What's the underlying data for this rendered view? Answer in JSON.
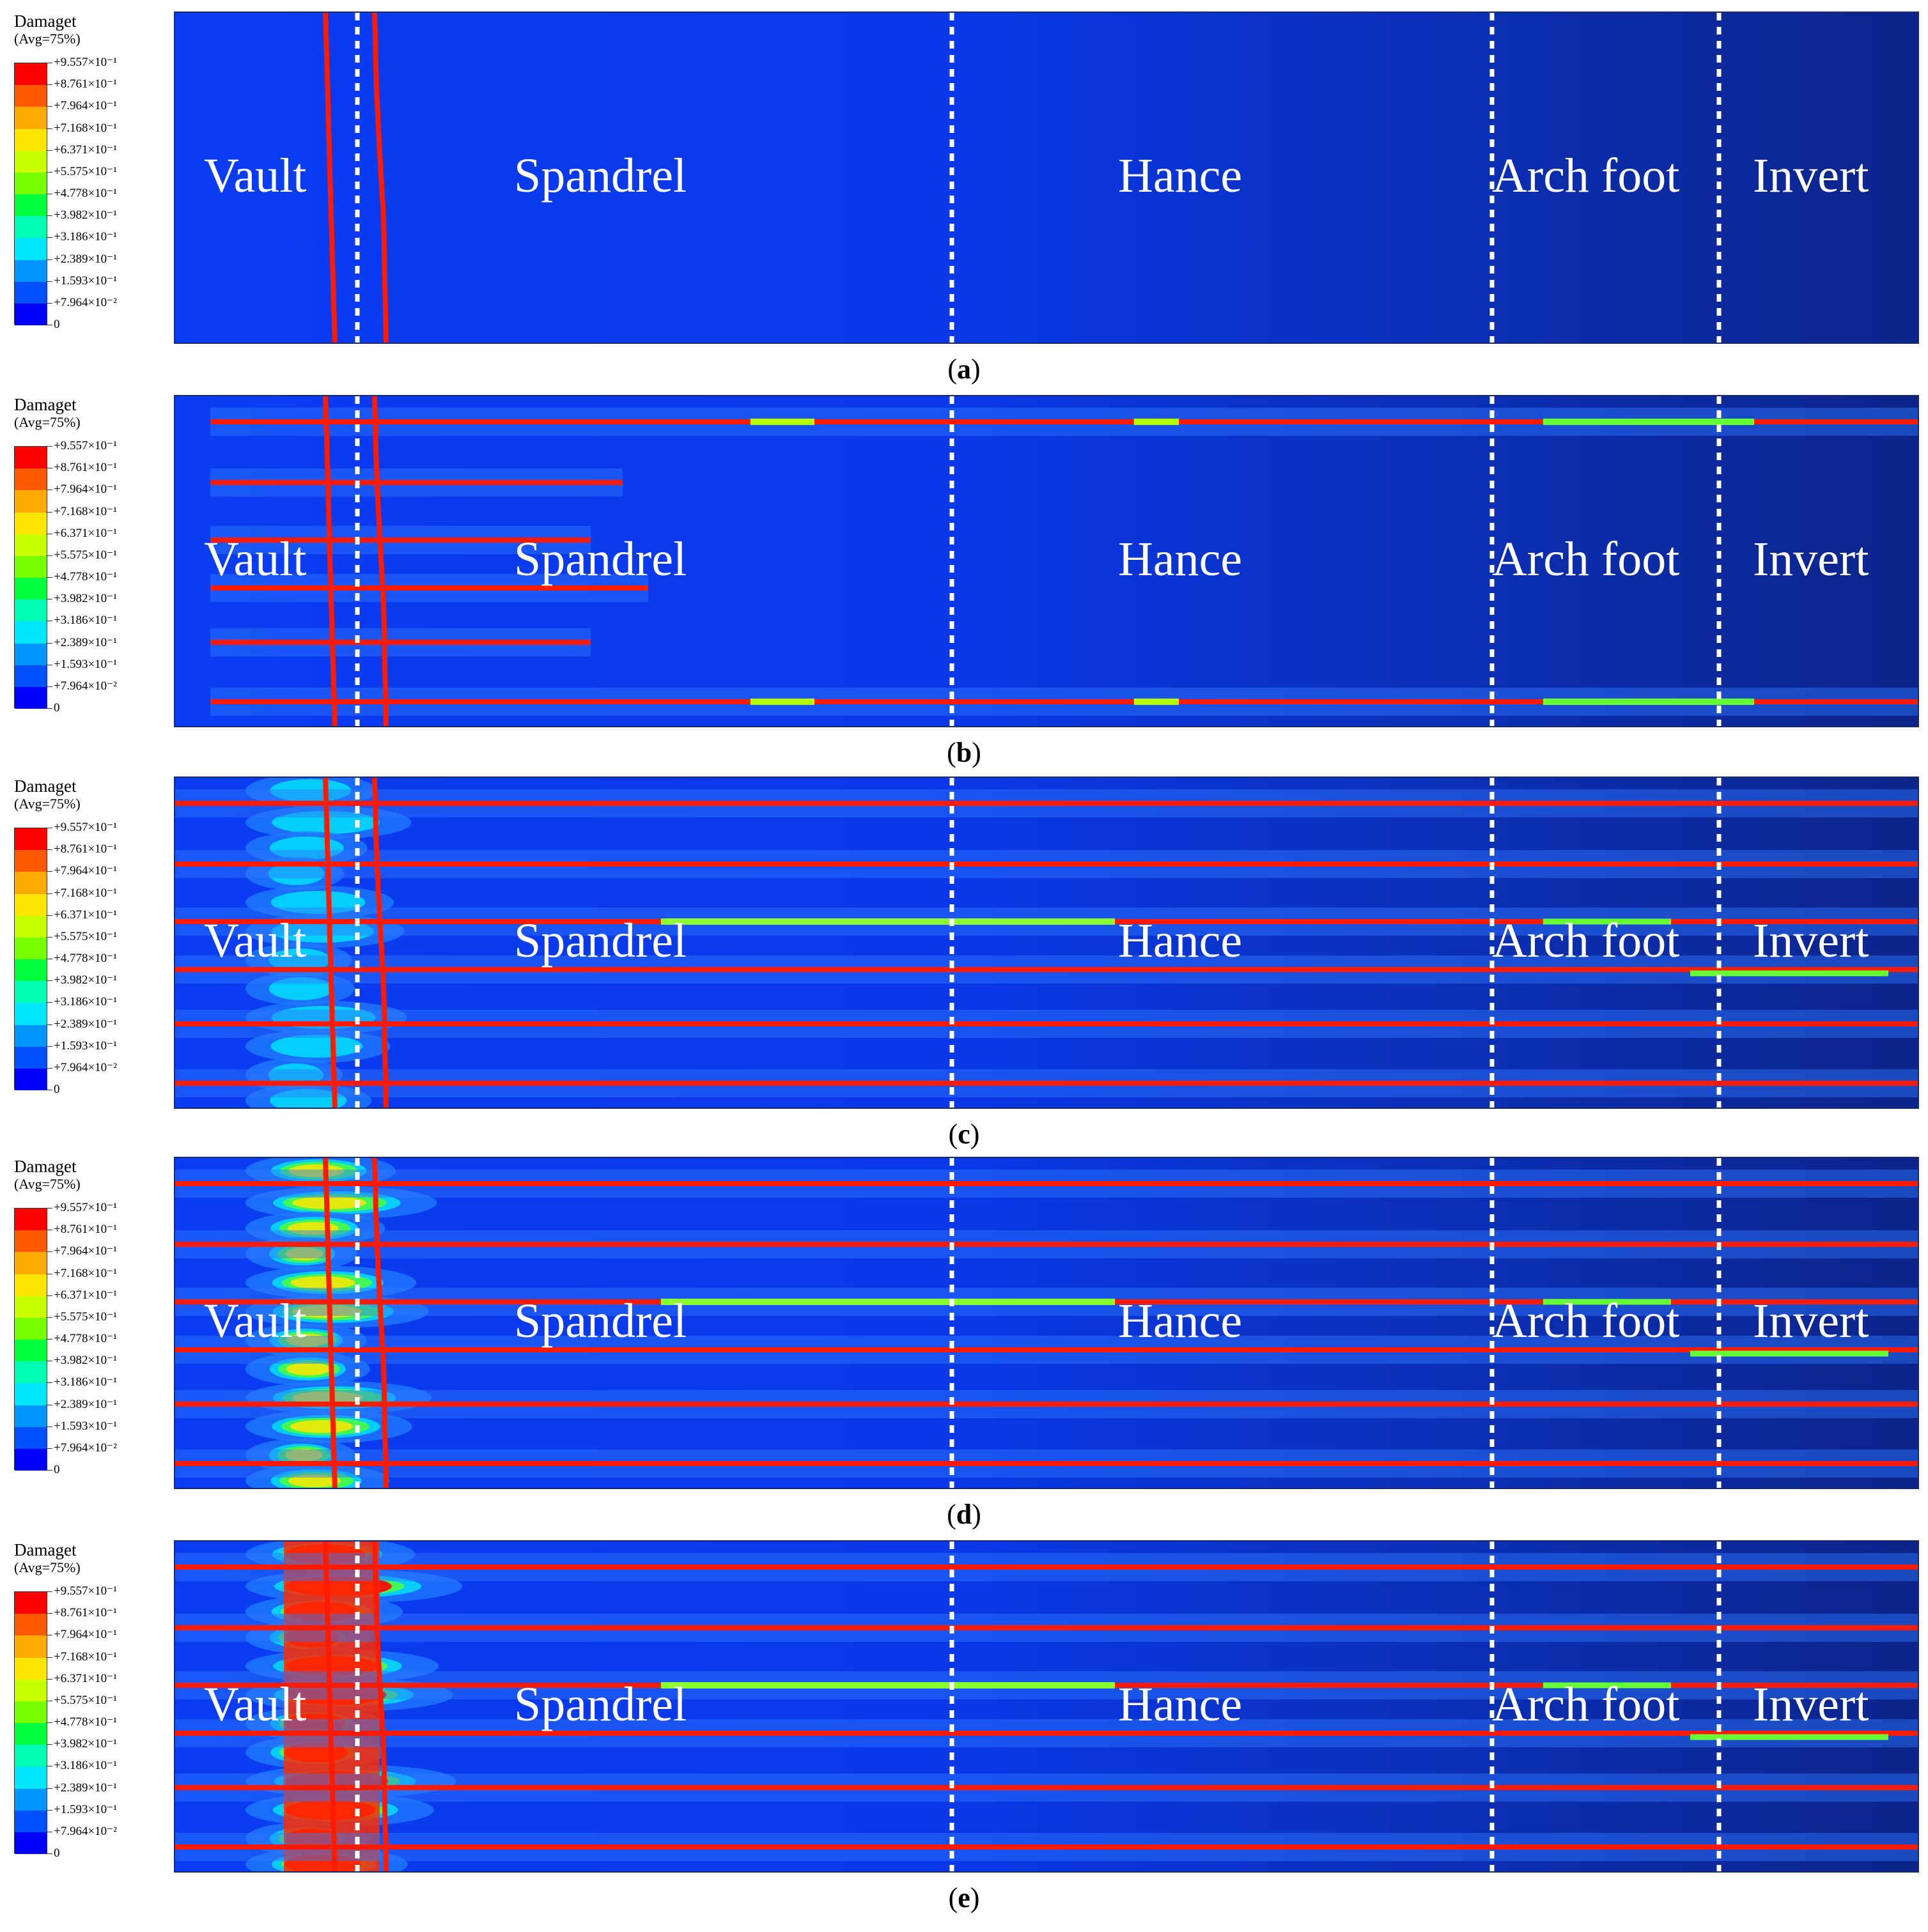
{
  "legend": {
    "title": "Damaget",
    "subtitle": "(Avg=75%)",
    "labels": [
      "+9.557×10⁻¹",
      "+8.761×10⁻¹",
      "+7.964×10⁻¹",
      "+7.168×10⁻¹",
      "+6.371×10⁻¹",
      "+5.575×10⁻¹",
      "+4.778×10⁻¹",
      "+3.982×10⁻¹",
      "+3.186×10⁻¹",
      "+2.389×10⁻¹",
      "+1.593×10⁻¹",
      "+7.964×10⁻²",
      "0"
    ],
    "colors": [
      "#ff0000",
      "#ff5a00",
      "#ffaa00",
      "#ffe600",
      "#c8ff00",
      "#78ff00",
      "#00ff3c",
      "#00ffb4",
      "#00e6ff",
      "#0096ff",
      "#0050ff",
      "#0000ff"
    ]
  },
  "regions": [
    "Vault",
    "Spandrel",
    "Hance",
    "Arch foot",
    "Invert"
  ],
  "panels": [
    {
      "caption_open": "(",
      "caption_letter": "a",
      "caption_close": ")",
      "damage_level": 0
    },
    {
      "caption_open": "(",
      "caption_letter": "b",
      "caption_close": ")",
      "damage_level": 1
    },
    {
      "caption_open": "(",
      "caption_letter": "c",
      "caption_close": ")",
      "damage_level": 2
    },
    {
      "caption_open": "(",
      "caption_letter": "d",
      "caption_close": ")",
      "damage_level": 3
    },
    {
      "caption_open": "(",
      "caption_letter": "e",
      "caption_close": ")",
      "damage_level": 4
    }
  ]
}
